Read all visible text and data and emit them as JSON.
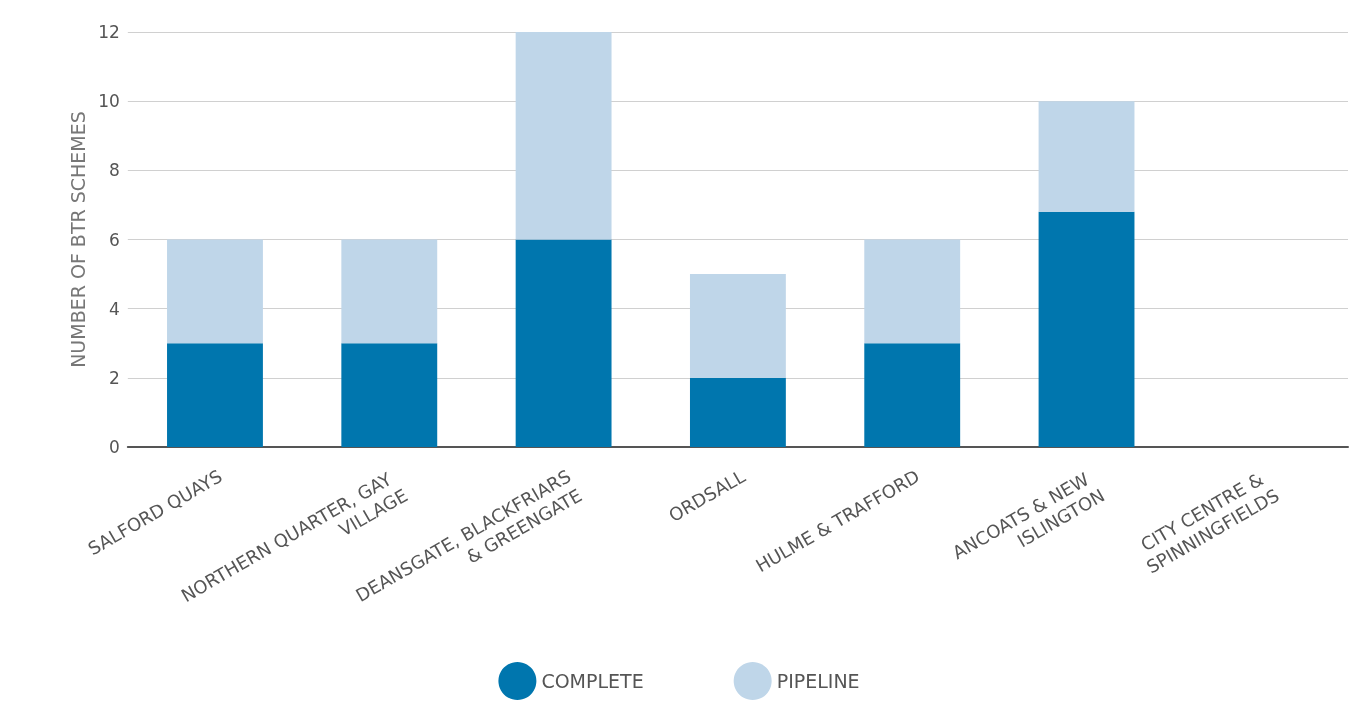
{
  "chart_data": {
    "type": "bar",
    "stacked": true,
    "ylabel": "NUMBER OF BTR SCHEMES",
    "categories": [
      "SALFORD QUAYS",
      "NORTHERN QUARTER, GAY VILLAGE",
      "DEANSGATE, BLACKFRIARS & GREENGATE",
      "ORDSALL",
      "HULME & TRAFFORD",
      "ANCOATS & NEW ISLINGTON",
      "CITY CENTRE & SPINNINGFIELDS"
    ],
    "series": [
      {
        "name": "COMPLETE",
        "color": "#0076ae",
        "values": [
          3,
          3,
          6,
          2,
          3,
          6.8,
          0
        ]
      },
      {
        "name": "PIPELINE",
        "color": "#bfd6e9",
        "values": [
          3,
          3,
          6,
          3,
          3,
          3.2,
          0
        ]
      }
    ],
    "ylim": [
      0,
      12
    ],
    "yticks": [
      0,
      2,
      4,
      6,
      8,
      10,
      12
    ],
    "grid": "y",
    "legend": "bottom"
  }
}
